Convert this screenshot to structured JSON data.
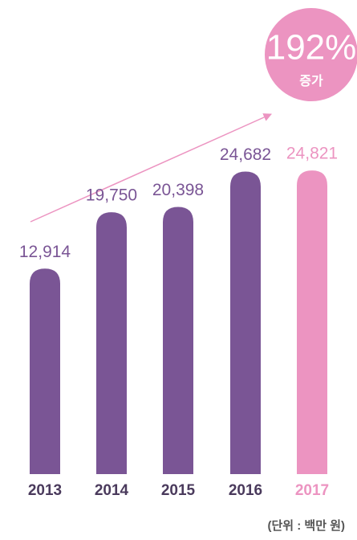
{
  "chart_data": {
    "type": "bar",
    "categories": [
      "2013",
      "2014",
      "2015",
      "2016",
      "2017"
    ],
    "values": [
      12914,
      19750,
      20398,
      24682,
      24821
    ],
    "value_labels": [
      "12,914",
      "19,750",
      "20,398",
      "24,682",
      "24,821"
    ],
    "colors": [
      "#7a5595",
      "#7a5595",
      "#7a5595",
      "#7a5595",
      "#ec94c1"
    ],
    "ylim": [
      -12000,
      26000
    ],
    "annotation": {
      "text": "192%",
      "subtext": "증가",
      "color": "#ec94c1"
    },
    "unit_note": "(단위 : 백만 원)"
  }
}
